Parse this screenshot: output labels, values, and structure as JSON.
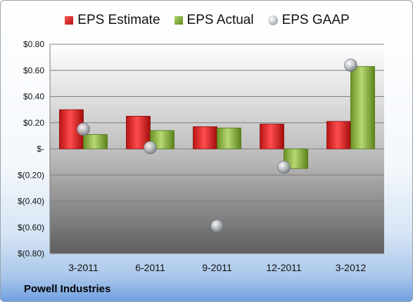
{
  "chart_data": {
    "type": "bar",
    "title": "",
    "xlabel": "",
    "ylabel": "",
    "categories": [
      "3-2011",
      "6-2011",
      "9-2011",
      "12-2011",
      "3-2012"
    ],
    "series": [
      {
        "name": "EPS Estimate",
        "kind": "bar",
        "color": "#d42a2a",
        "values": [
          0.3,
          0.25,
          0.17,
          0.19,
          0.21
        ]
      },
      {
        "name": "EPS Actual",
        "kind": "bar",
        "color": "#8cb43c",
        "values": [
          0.11,
          0.14,
          0.16,
          -0.15,
          0.63
        ]
      },
      {
        "name": "EPS GAAP",
        "kind": "marker",
        "color": "#b4b9c0",
        "values": [
          0.15,
          0.01,
          -0.59,
          -0.14,
          0.64
        ]
      }
    ],
    "ylim": [
      -0.8,
      0.8
    ],
    "yticks": [
      0.8,
      0.6,
      0.4,
      0.2,
      0,
      -0.2,
      -0.4,
      -0.6,
      -0.8
    ],
    "ytick_labels": [
      "$0.80",
      "$0.60",
      "$0.40",
      "$0.20",
      "$-",
      "$(0.20)",
      "$(0.40)",
      "$(0.60)",
      "$(0.80)"
    ],
    "grid": true,
    "legend_position": "top"
  },
  "footer": {
    "company": "Powell Industries"
  }
}
